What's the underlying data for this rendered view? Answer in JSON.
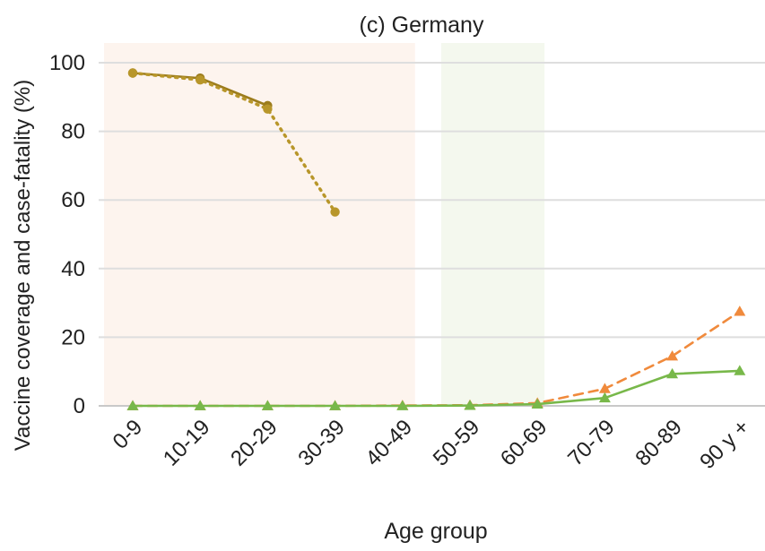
{
  "chart_data": {
    "type": "line",
    "title": "(c) Germany",
    "xlabel": "Age group",
    "ylabel": "Vaccine coverage and case-fatality (%)",
    "categories": [
      "0-9",
      "10-19",
      "20-29",
      "30-39",
      "40-49",
      "50-59",
      "60-69",
      "70-79",
      "80-89",
      "90 y +"
    ],
    "ylim": [
      0,
      100
    ],
    "yticks": [
      0,
      20,
      40,
      60,
      80,
      100
    ],
    "grid": "horizontal",
    "shaded_regions": [
      {
        "from": "0-9",
        "to": "40-49",
        "color": "#fdf4ee"
      },
      {
        "from": "50-59",
        "to": "60-69",
        "color": "#f4f8ee"
      }
    ],
    "series": [
      {
        "style": "solid",
        "color": "#9c7c1c",
        "marker": "circle",
        "values": [
          97,
          95.5,
          87.5,
          null,
          null,
          null,
          null,
          null,
          null,
          null
        ]
      },
      {
        "style": "dotted",
        "color": "#b8962a",
        "marker": "circle",
        "values": [
          97,
          95,
          86.5,
          56.5,
          null,
          null,
          null,
          null,
          null,
          null
        ]
      },
      {
        "style": "dashed",
        "color": "#f08a3c",
        "marker": "triangle",
        "values": [
          0,
          0,
          0,
          0,
          0.1,
          0.2,
          0.8,
          5,
          14.5,
          27.5
        ]
      },
      {
        "style": "solid",
        "color": "#78b84a",
        "marker": "triangle",
        "values": [
          0,
          0,
          0,
          0,
          0,
          0.1,
          0.5,
          2.3,
          9.3,
          10.2
        ]
      }
    ]
  }
}
